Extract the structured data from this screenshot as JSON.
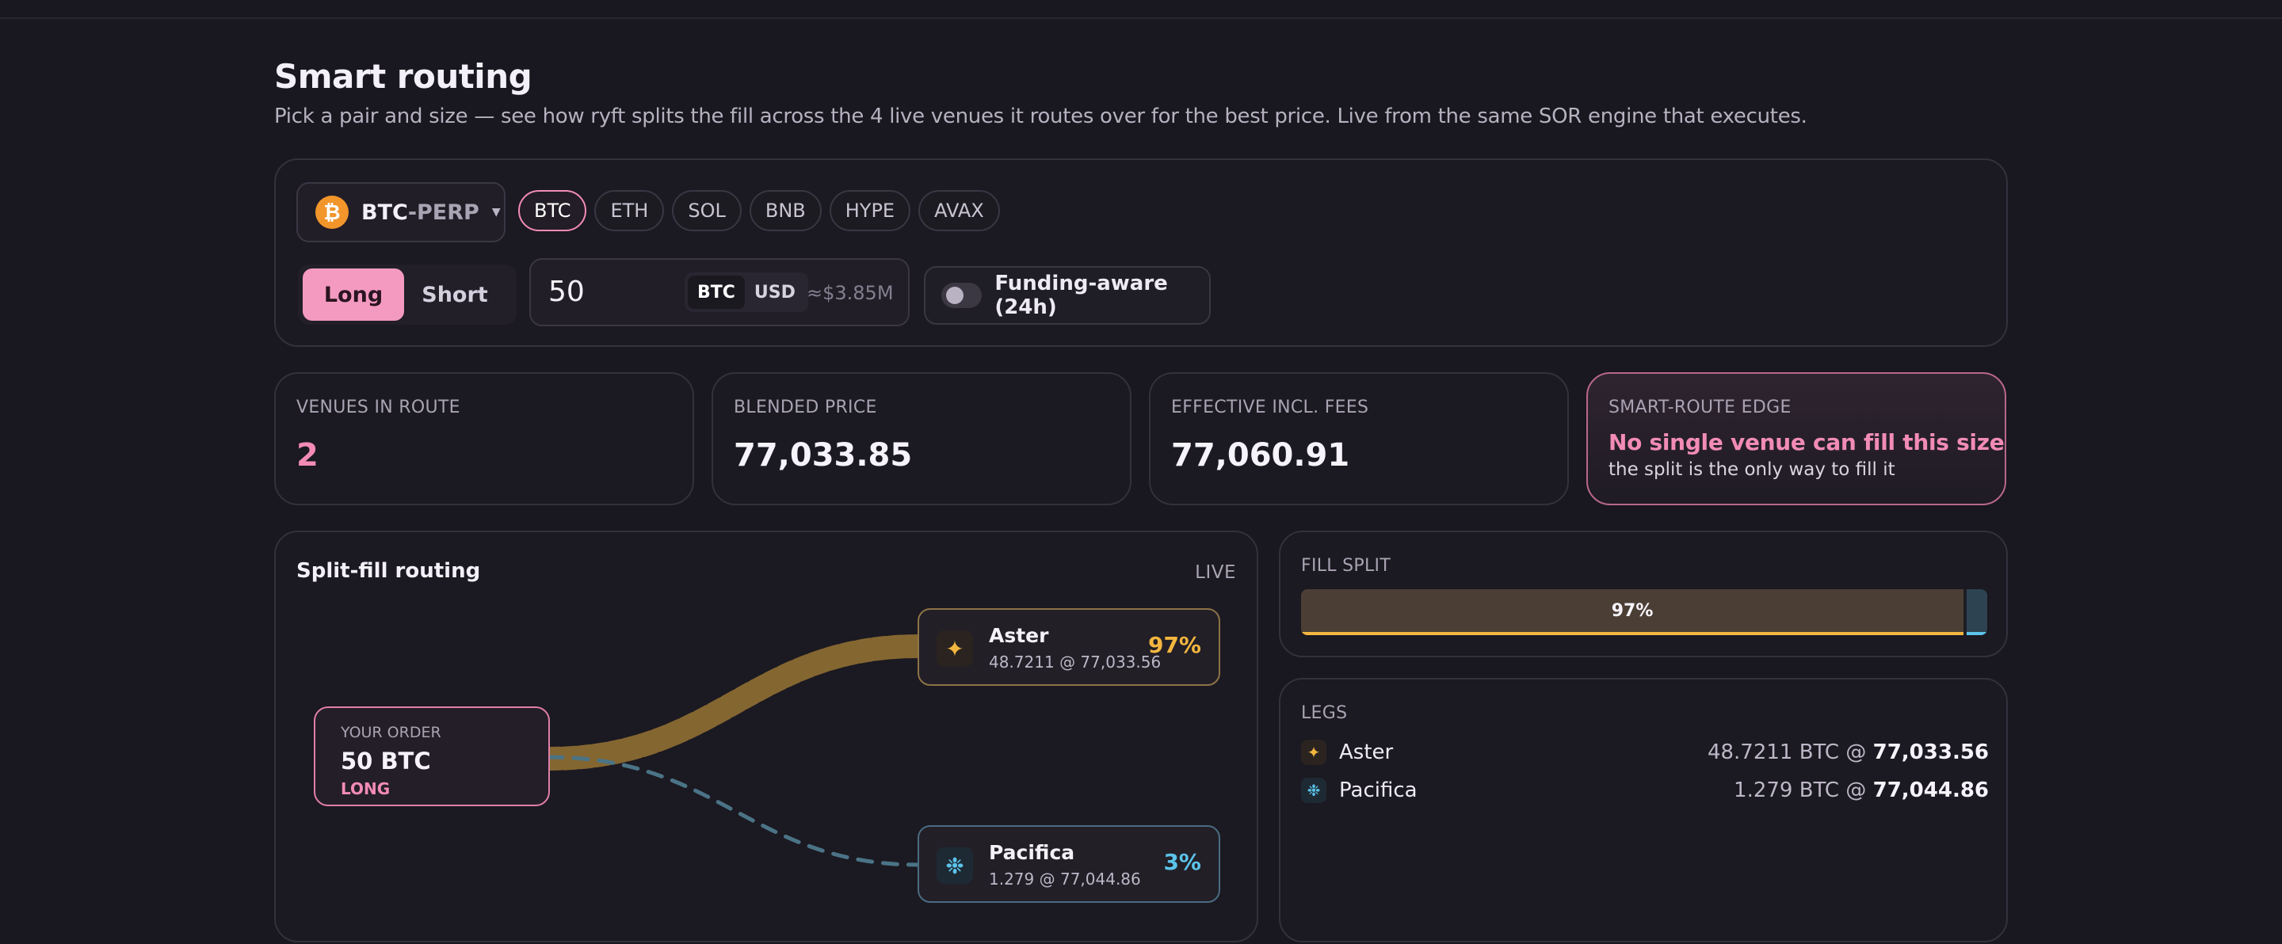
{
  "header": {
    "title": "Smart routing",
    "subtitle": "Pick a pair and size — see how ryft splits the fill across the 4 live venues it routes over for the best price. Live from the same SOR engine that executes."
  },
  "controls": {
    "pair": {
      "icon": "bitcoin-icon",
      "icon_glyph": "₿",
      "base": "BTC",
      "quote": "-PERP"
    },
    "assets": [
      "BTC",
      "ETH",
      "SOL",
      "BNB",
      "HYPE",
      "AVAX"
    ],
    "active_asset": "BTC",
    "side": {
      "long": "Long",
      "short": "Short",
      "active": "Long"
    },
    "size": {
      "value": "50",
      "units": [
        "BTC",
        "USD"
      ],
      "active_unit": "BTC",
      "approx": "≈$3.85M"
    },
    "funding": {
      "label": "Funding-aware (24h)",
      "enabled": false
    }
  },
  "stats": {
    "venues": {
      "label": "VENUES IN ROUTE",
      "value": "2"
    },
    "blended": {
      "label": "BLENDED PRICE",
      "value": "77,033.85"
    },
    "effective": {
      "label": "EFFECTIVE INCL. FEES",
      "value": "77,060.91"
    },
    "edge": {
      "label": "SMART-ROUTE EDGE",
      "headline": "No single venue can fill this size",
      "sub": "the split is the only way to fill it"
    }
  },
  "routing": {
    "title": "Split-fill routing",
    "status": "LIVE",
    "order": {
      "kicker": "YOUR ORDER",
      "size": "50 BTC",
      "side": "LONG"
    },
    "venues": [
      {
        "name": "Aster",
        "fill": "48.7211 @ 77,033.56",
        "pct": "97%",
        "share": 0.97,
        "icon": "aster-star-icon",
        "glyph": "✦",
        "color": "#f3b63f"
      },
      {
        "name": "Pacifica",
        "fill": "1.279 @ 77,044.86",
        "pct": "3%",
        "share": 0.03,
        "icon": "pacifica-icon",
        "glyph": "❉",
        "color": "#5cc3ea"
      }
    ]
  },
  "fill_split": {
    "label": "FILL SPLIT",
    "aster_text": "97%"
  },
  "legs": {
    "label": "LEGS",
    "items": [
      {
        "name": "Aster",
        "glyph": "✦",
        "qty": "48.7211 BTC @ ",
        "price": "77,033.56"
      },
      {
        "name": "Pacifica",
        "glyph": "❉",
        "qty": "1.279 BTC @ ",
        "price": "77,044.86"
      }
    ]
  }
}
